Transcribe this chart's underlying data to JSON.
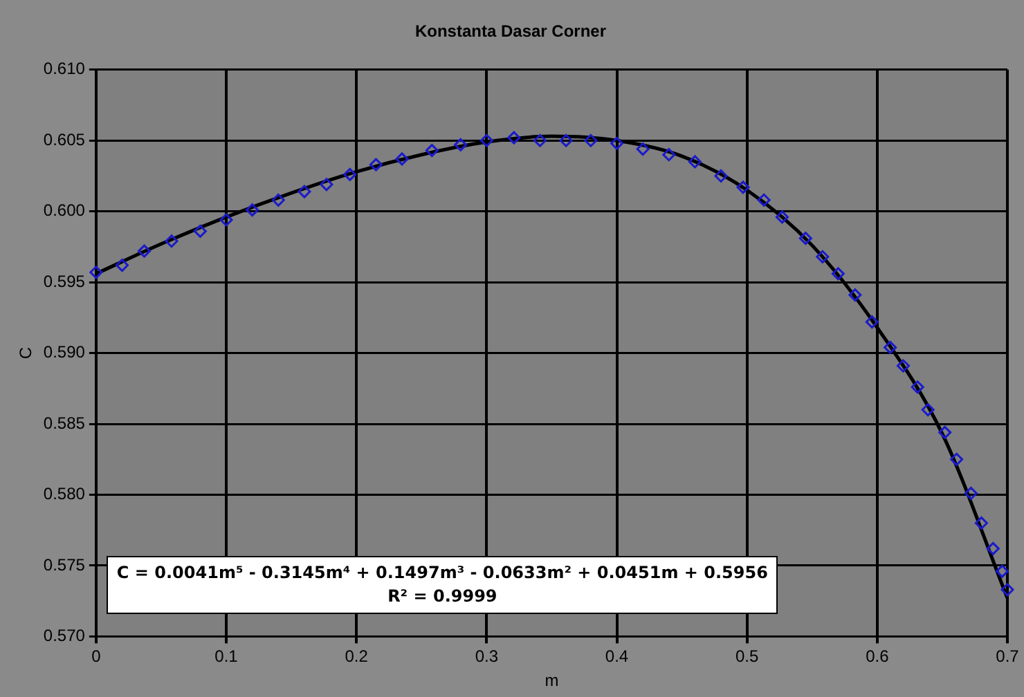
{
  "chart_data": {
    "type": "scatter",
    "title": "Konstanta Dasar Corner",
    "xlabel": "m",
    "ylabel": "C",
    "xlim": [
      0,
      0.7
    ],
    "xticks": [
      0,
      0.1,
      0.2,
      0.3,
      0.4,
      0.5,
      0.6,
      0.7
    ],
    "ylim": [
      0.57,
      0.61
    ],
    "yticks": [
      {
        "value": 0.57,
        "label": "0.570"
      },
      {
        "value": 0.575,
        "label": "0.575"
      },
      {
        "value": 0.58,
        "label": "0.580"
      },
      {
        "value": 0.585,
        "label": "0.585"
      },
      {
        "value": 0.59,
        "label": "0.590"
      },
      {
        "value": 0.595,
        "label": "0.595"
      },
      {
        "value": 0.6,
        "label": "0.600"
      },
      {
        "value": 0.605,
        "label": "0.605"
      },
      {
        "value": 0.61,
        "label": "0.610"
      }
    ],
    "grid": true,
    "legend": false,
    "marker": "diamond",
    "series": [
      {
        "color": "#1a1acc",
        "x": [
          0,
          0.02,
          0.037,
          0.058,
          0.08,
          0.1,
          0.12,
          0.14,
          0.16,
          0.177,
          0.195,
          0.215,
          0.235,
          0.258,
          0.28,
          0.3,
          0.321,
          0.341,
          0.361,
          0.38,
          0.4,
          0.42,
          0.44,
          0.46,
          0.48,
          0.497,
          0.513,
          0.527,
          0.545,
          0.558,
          0.57,
          0.583,
          0.596,
          0.61,
          0.62,
          0.631,
          0.639,
          0.652,
          0.661,
          0.672,
          0.68,
          0.689,
          0.696,
          0.7
        ],
        "values": [
          0.5957,
          0.5962,
          0.5972,
          0.5979,
          0.5986,
          0.5994,
          0.6001,
          0.6008,
          0.6014,
          0.6019,
          0.6026,
          0.6033,
          0.6037,
          0.6043,
          0.6047,
          0.605,
          0.6052,
          0.605,
          0.605,
          0.605,
          0.6048,
          0.6044,
          0.604,
          0.6035,
          0.6025,
          0.6017,
          0.6008,
          0.5996,
          0.5981,
          0.5968,
          0.5956,
          0.5941,
          0.5922,
          0.5904,
          0.5891,
          0.5876,
          0.586,
          0.5844,
          0.5825,
          0.5801,
          0.578,
          0.5762,
          0.5746,
          0.5733
        ]
      },
      {
        "type": "line",
        "color": "#000000",
        "marker": "none",
        "x": [
          0,
          0.05,
          0.1,
          0.15,
          0.2,
          0.25,
          0.3,
          0.35,
          0.4,
          0.45,
          0.5,
          0.55,
          0.6,
          0.65,
          0.7
        ],
        "values": [
          0.5956,
          0.5977,
          0.5996,
          0.6013,
          0.6028,
          0.604,
          0.6049,
          0.6053,
          0.605,
          0.6039,
          0.6015,
          0.5976,
          0.5918,
          0.5843,
          0.5727
        ]
      }
    ],
    "annotations": [
      "C = 0.0041m⁵ - 0.3145m⁴ + 0.1497m³ - 0.0633m² + 0.0451m + 0.5956",
      "R² = 0.9999"
    ]
  }
}
